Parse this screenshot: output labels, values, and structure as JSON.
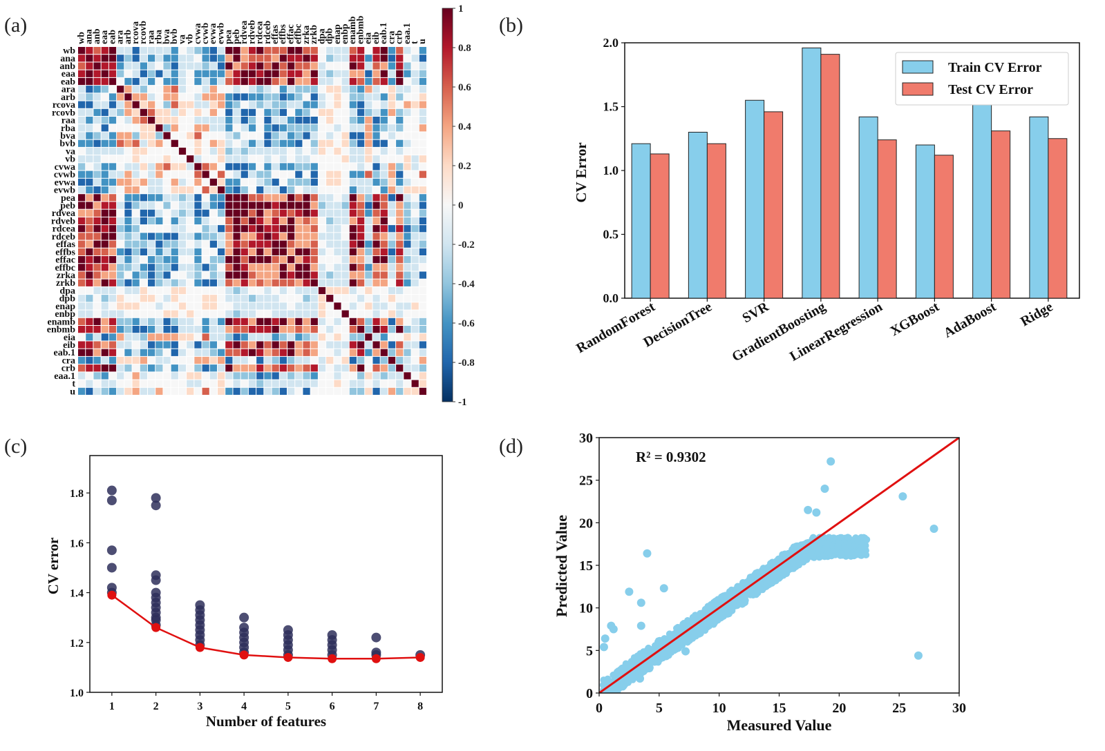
{
  "panels": {
    "a": {
      "label": "(a)"
    },
    "b": {
      "label": "(b)"
    },
    "c": {
      "label": "(c)"
    },
    "d": {
      "label": "(d)"
    }
  },
  "chart_data": [
    {
      "id": "a",
      "type": "heatmap",
      "title": "",
      "variables": [
        "wb",
        "ana",
        "anb",
        "eaa",
        "eab",
        "ara",
        "arb",
        "rcova",
        "rcovb",
        "raa",
        "rba",
        "bva",
        "bvb",
        "va",
        "vb",
        "cvwa",
        "cvwb",
        "evwa",
        "evwb",
        "pea",
        "peb",
        "rdvea",
        "rdveb",
        "rdcea",
        "rdceb",
        "effas",
        "effbs",
        "effac",
        "effbc",
        "zrka",
        "zrkb",
        "dpa",
        "dpb",
        "enap",
        "enbp",
        "enamb",
        "enbmb",
        "eia",
        "eib",
        "eab.1",
        "cra",
        "crb",
        "eaa.1",
        "t",
        "u"
      ],
      "colorbar": {
        "min": -1,
        "max": 1,
        "ticks": [
          "1",
          "0.8",
          "0.6",
          "0.4",
          "0.2",
          "0",
          "-0.2",
          "-0.4",
          "-0.6",
          "-0.8",
          "-1"
        ]
      },
      "colorscale": [
        "#053061",
        "#2166ac",
        "#4393c3",
        "#92c5de",
        "#d1e5f0",
        "#f7f7f7",
        "#fddbc7",
        "#f4a582",
        "#d6604d",
        "#b2182b",
        "#67001f"
      ],
      "values": "45x45 correlation matrix (estimated)"
    },
    {
      "id": "b",
      "type": "bar",
      "title": "",
      "xlabel": "",
      "ylabel": "CV Error",
      "ylim": [
        0,
        2.0
      ],
      "yticks": [
        "0.0",
        "0.5",
        "1.0",
        "1.5",
        "2.0"
      ],
      "categories": [
        "RandomForest",
        "DecisionTree",
        "SVR",
        "GradientBoosting",
        "LinearRegression",
        "XGBoost",
        "AdaBoost",
        "Ridge"
      ],
      "series": [
        {
          "name": "Train CV Error",
          "color": "#87ceeb",
          "values": [
            1.21,
            1.3,
            1.55,
            1.96,
            1.42,
            1.2,
            1.54,
            1.42
          ]
        },
        {
          "name": "Test  CV  Error",
          "color": "#f07b6c",
          "values": [
            1.13,
            1.21,
            1.46,
            1.91,
            1.24,
            1.12,
            1.31,
            1.25
          ]
        }
      ],
      "legend": "top-right"
    },
    {
      "id": "c",
      "type": "scatter",
      "title": "",
      "xlabel": "Number of features",
      "ylabel": "CV error",
      "xlim": [
        0.5,
        8.5
      ],
      "ylim": [
        1.0,
        1.95
      ],
      "xticks": [
        "1",
        "2",
        "3",
        "4",
        "5",
        "6",
        "7",
        "8"
      ],
      "yticks": [
        "1.0",
        "1.2",
        "1.4",
        "1.6",
        "1.8"
      ],
      "points_color": "#2e2f5a",
      "points": [
        [
          1,
          1.81
        ],
        [
          1,
          1.77
        ],
        [
          1,
          1.57
        ],
        [
          1,
          1.5
        ],
        [
          1,
          1.42
        ],
        [
          1,
          1.4
        ],
        [
          2,
          1.78
        ],
        [
          2,
          1.75
        ],
        [
          2,
          1.47
        ],
        [
          2,
          1.45
        ],
        [
          2,
          1.4
        ],
        [
          2,
          1.38
        ],
        [
          2,
          1.36
        ],
        [
          2,
          1.34
        ],
        [
          2,
          1.32
        ],
        [
          2,
          1.3
        ],
        [
          2,
          1.29
        ],
        [
          2,
          1.27
        ],
        [
          3,
          1.35
        ],
        [
          3,
          1.33
        ],
        [
          3,
          1.31
        ],
        [
          3,
          1.29
        ],
        [
          3,
          1.27
        ],
        [
          3,
          1.25
        ],
        [
          3,
          1.23
        ],
        [
          3,
          1.21
        ],
        [
          3,
          1.19
        ],
        [
          4,
          1.3
        ],
        [
          4,
          1.26
        ],
        [
          4,
          1.24
        ],
        [
          4,
          1.22
        ],
        [
          4,
          1.2
        ],
        [
          4,
          1.18
        ],
        [
          4,
          1.16
        ],
        [
          5,
          1.25
        ],
        [
          5,
          1.23
        ],
        [
          5,
          1.21
        ],
        [
          5,
          1.19
        ],
        [
          5,
          1.17
        ],
        [
          5,
          1.15
        ],
        [
          6,
          1.23
        ],
        [
          6,
          1.21
        ],
        [
          6,
          1.19
        ],
        [
          6,
          1.17
        ],
        [
          6,
          1.15
        ],
        [
          7,
          1.22
        ],
        [
          7,
          1.16
        ],
        [
          7,
          1.15
        ],
        [
          8,
          1.15
        ]
      ],
      "line": {
        "color": "#e01010",
        "x": [
          1,
          2,
          3,
          4,
          5,
          6,
          7,
          8
        ],
        "y": [
          1.39,
          1.26,
          1.18,
          1.15,
          1.14,
          1.135,
          1.135,
          1.14
        ]
      }
    },
    {
      "id": "d",
      "type": "scatter",
      "title": "",
      "xlabel": "Measured Value",
      "ylabel": "Predicted Value",
      "xlim": [
        0,
        30
      ],
      "ylim": [
        0,
        30
      ],
      "xticks": [
        "0",
        "5",
        "10",
        "15",
        "20",
        "25",
        "30"
      ],
      "yticks": [
        "0",
        "5",
        "10",
        "15",
        "20",
        "25",
        "30"
      ],
      "annotation": "R² = 0.9302",
      "points_color": "#87ceeb",
      "outliers": [
        [
          19.3,
          27.2
        ],
        [
          18.8,
          24.0
        ],
        [
          25.3,
          23.1
        ],
        [
          27.9,
          19.3
        ],
        [
          17.4,
          21.5
        ],
        [
          18.1,
          21.2
        ],
        [
          4.0,
          16.4
        ],
        [
          2.5,
          11.9
        ],
        [
          3.5,
          10.6
        ],
        [
          5.4,
          12.3
        ],
        [
          1.0,
          7.9
        ],
        [
          1.2,
          7.5
        ],
        [
          0.5,
          6.4
        ],
        [
          3.5,
          7.9
        ],
        [
          26.6,
          4.4
        ],
        [
          7.2,
          4.9
        ],
        [
          3.4,
          1.7
        ],
        [
          0.4,
          5.4
        ]
      ],
      "fit_line": {
        "color": "#e01010",
        "x": [
          0,
          30
        ],
        "y": [
          0,
          30
        ]
      }
    }
  ]
}
